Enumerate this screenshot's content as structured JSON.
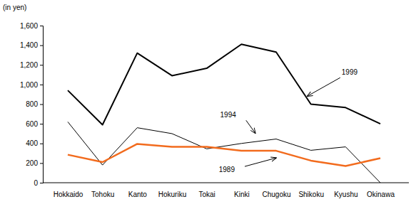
{
  "chart_data": {
    "type": "line",
    "y_label": "(in yen)",
    "categories": [
      "Hokkaido",
      "Tohoku",
      "Kanto",
      "Hokuriku",
      "Tokai",
      "Kinki",
      "Chugoku",
      "Shikoku",
      "Kyushu",
      "Okinawa"
    ],
    "series": [
      {
        "name": "1999",
        "color": "#000000",
        "values": [
          940,
          590,
          1320,
          1090,
          1165,
          1410,
          1330,
          800,
          765,
          600
        ]
      },
      {
        "name": "1994",
        "color": "#000000",
        "values": [
          620,
          180,
          560,
          500,
          345,
          400,
          445,
          330,
          365,
          0
        ]
      },
      {
        "name": "1989",
        "color": "#f26b1d",
        "values": [
          285,
          210,
          395,
          365,
          365,
          325,
          325,
          225,
          170,
          250
        ]
      }
    ],
    "ylim": [
      0,
      1600
    ],
    "yticks": [
      0,
      200,
      400,
      600,
      800,
      {
        "value": 1000,
        "label": "1,000"
      },
      {
        "value": 1200,
        "label": "1,200"
      },
      {
        "value": 1400,
        "label": "1,400"
      },
      {
        "value": 1600,
        "label": "1,600"
      }
    ],
    "grid": false
  }
}
